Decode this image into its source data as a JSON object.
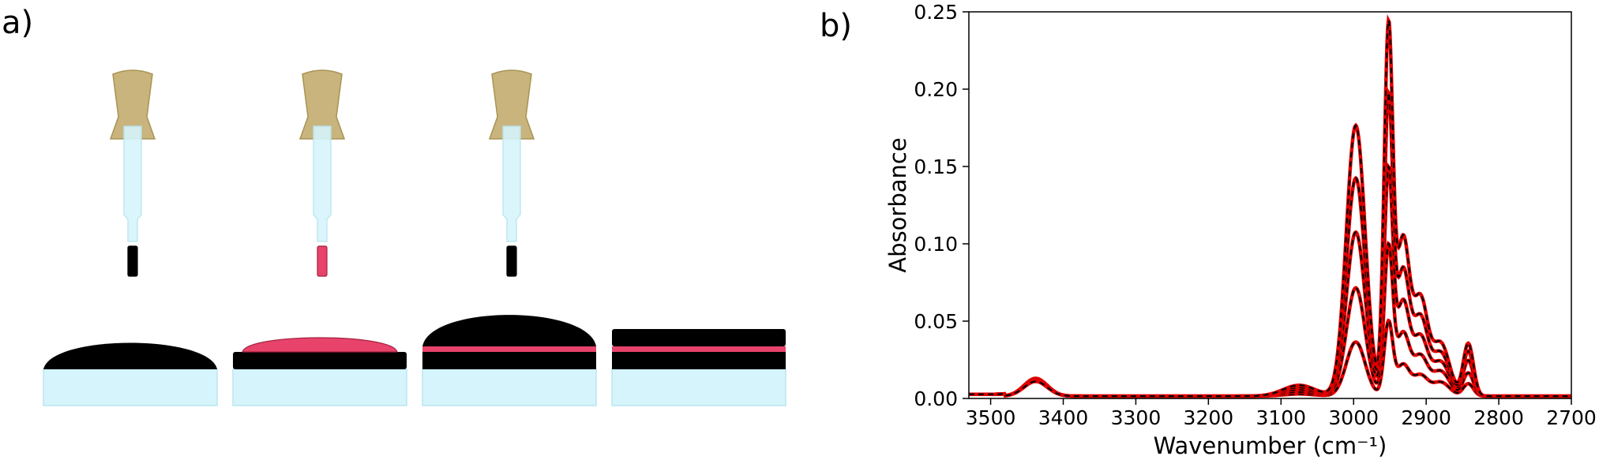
{
  "panel_a": {
    "label": "a)",
    "steps": [
      {
        "drop": "black",
        "substrate_layers": [],
        "deposit": "black-dome"
      },
      {
        "drop": "pink",
        "substrate_layers": [
          "black"
        ],
        "deposit": "pink-dome"
      },
      {
        "drop": "black",
        "substrate_layers": [
          "black",
          "pink"
        ],
        "deposit": "black-dome"
      },
      {
        "drop": "none",
        "substrate_layers": [
          "black",
          "pink",
          "black"
        ],
        "deposit": "none"
      }
    ],
    "colors": {
      "black": "#000000",
      "pink": "#e8436b",
      "glass": "#d6f4fb",
      "bulb": "#c8b47c"
    }
  },
  "panel_b": {
    "label": "b)"
  },
  "chart_data": {
    "type": "line",
    "xlabel": "Wavenumber (cm⁻¹)",
    "ylabel": "Absorbance",
    "xlim": [
      3530,
      2700
    ],
    "ylim": [
      0.0,
      0.25
    ],
    "x_reversed": true,
    "xticks": [
      "3500",
      "3400",
      "3300",
      "3200",
      "3100",
      "3000",
      "2900",
      "2800",
      "2700"
    ],
    "xtick_values": [
      3500,
      3400,
      3300,
      3200,
      3100,
      3000,
      2900,
      2800,
      2700
    ],
    "yticks": [
      "0.00",
      "0.05",
      "0.10",
      "0.15",
      "0.20",
      "0.25"
    ],
    "ytick_values": [
      0.0,
      0.05,
      0.1,
      0.15,
      0.2,
      0.25
    ],
    "grid": false,
    "legend": "none",
    "line_colors": {
      "measured": "#000000",
      "fit": "#e00000"
    },
    "peaks_wavenumber": [
      3438,
      2997,
      2952,
      2932,
      2908,
      2880,
      2842
    ],
    "series": [
      {
        "values_at_peaks": [
          0.0115,
          0.035,
          0.047,
          0.02,
          0.013,
          0.009,
          0.008
        ]
      },
      {
        "values_at_peaks": [
          0.011,
          0.07,
          0.095,
          0.04,
          0.025,
          0.016,
          0.015
        ]
      },
      {
        "values_at_peaks": [
          0.0105,
          0.106,
          0.143,
          0.06,
          0.037,
          0.022,
          0.023
        ]
      },
      {
        "values_at_peaks": [
          0.01,
          0.141,
          0.189,
          0.08,
          0.049,
          0.028,
          0.029
        ]
      },
      {
        "values_at_peaks": [
          0.0095,
          0.175,
          0.234,
          0.1,
          0.061,
          0.034,
          0.034
        ]
      }
    ]
  }
}
